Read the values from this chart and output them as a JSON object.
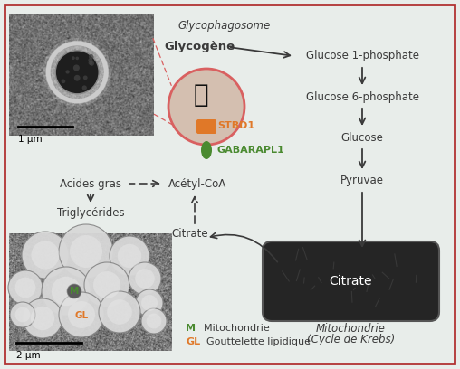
{
  "bg_color": "#e8edea",
  "border_color": "#b03030",
  "title_italic": "Glycophagosome",
  "glycogene_label": "Glycogène",
  "stbd1_label": "STBD1",
  "gabarapl1_label": "GABARAPL1",
  "pathway_labels": [
    "Glucose 1-phosphate",
    "Glucose 6-phosphate",
    "Glucose",
    "Pyruvae"
  ],
  "citrate_label": "Citrate",
  "acetyl_coa_label": "Acétyl-CoA",
  "acides_gras_label": "Acides gras",
  "triglycerides_label": "Triglycérides",
  "mito_label1": "Mitochondrie",
  "mito_label2": "(Cycle de Krebs)",
  "scale1": "1 µm",
  "scale2": "2 µm",
  "stbd1_color": "#e07828",
  "gabarapl1_color": "#4a8a30",
  "glyco_circle_edge": "#d96060",
  "glyco_fill_color": "#d4bfb0",
  "mito_shape_color": "#252525",
  "mito_text_color": "#ffffff",
  "arrow_color": "#3a3a3a",
  "text_color": "#3a3a3a",
  "border_width": 2.0,
  "fig_w": 5.08,
  "fig_h": 4.08,
  "dpi": 100
}
